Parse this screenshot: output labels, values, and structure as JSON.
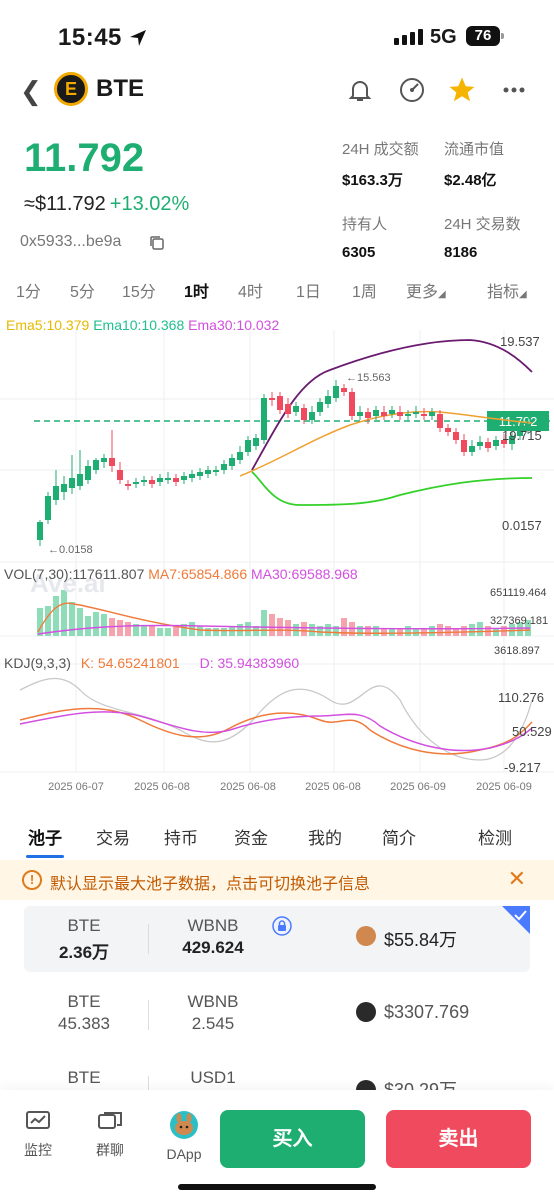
{
  "status_bar": {
    "time": "15:45",
    "network": "5G",
    "battery": "76"
  },
  "header": {
    "title": "BTE",
    "logo_letter": "E"
  },
  "price": {
    "main": "11.792",
    "usd": "≈$11.792",
    "change": "+13.02%",
    "address": "0x5933...be9a"
  },
  "stats": [
    {
      "label": "24H 成交额",
      "value": "$163.3万"
    },
    {
      "label": "流通市值",
      "value": "$2.48亿"
    },
    {
      "label": "持有人",
      "value": "6305"
    },
    {
      "label": "24H 交易数",
      "value": "8186"
    }
  ],
  "timeframes": [
    "1分",
    "5分",
    "15分",
    "1时",
    "4时",
    "1日",
    "1周",
    "更多",
    "指标"
  ],
  "active_timeframe": "1时",
  "chart": {
    "ema5": "Ema5:10.379",
    "ema10": "Ema10:10.368",
    "ema30": "Ema30:10.032",
    "y_high": "19.537",
    "y_mid": "19.715",
    "y_low": "0.0157",
    "current_price": "11.792",
    "marker_high": "←15.563",
    "marker_low": "←0.0158",
    "vol_label": "VOL(7,30):117611.807",
    "ma7": "MA7:65854.866",
    "ma30": "MA30:69588.968",
    "vol_ticks": [
      "651119.464",
      "327369.181",
      "3618.897"
    ],
    "kdj_label": "KDJ(9,3,3)",
    "kdj_k": "K: 54.65241801",
    "kdj_d": "D: 35.94383960",
    "kdj_ticks": [
      "110.276",
      "50.529",
      "-9.217"
    ],
    "dates": [
      "2025 06-07",
      "2025 06-08",
      "2025 06-08",
      "2025 06-08",
      "2025 06-09",
      "2025 06-09"
    ],
    "watermark": "Ave.ai",
    "colors": {
      "up": "#1fae72",
      "down": "#f04a5e",
      "ema5": "#e6b800",
      "ema10": "#1fbf8f",
      "ema30": "#d34fe0"
    }
  },
  "section_tabs": [
    "池子",
    "交易",
    "持币",
    "资金",
    "我的",
    "简介",
    "检测"
  ],
  "active_section": "池子",
  "notice": "默认显示最大池子数据，点击可切换池子信息",
  "pools": [
    {
      "token_a": "BTE",
      "amount_a": "2.36万",
      "token_b": "WBNB",
      "amount_b": "429.624",
      "liquidity": "$55.84万"
    },
    {
      "token_a": "BTE",
      "amount_a": "45.383",
      "token_b": "WBNB",
      "amount_b": "2.545",
      "liquidity": "$3307.769"
    },
    {
      "token_a": "BTE",
      "amount_a": "",
      "token_b": "USD1",
      "amount_b": "",
      "liquidity": "$30.29万"
    }
  ],
  "bottom_nav": {
    "monitor": "监控",
    "group_chat": "群聊",
    "dapp": "DApp",
    "buy": "买入",
    "sell": "卖出"
  }
}
